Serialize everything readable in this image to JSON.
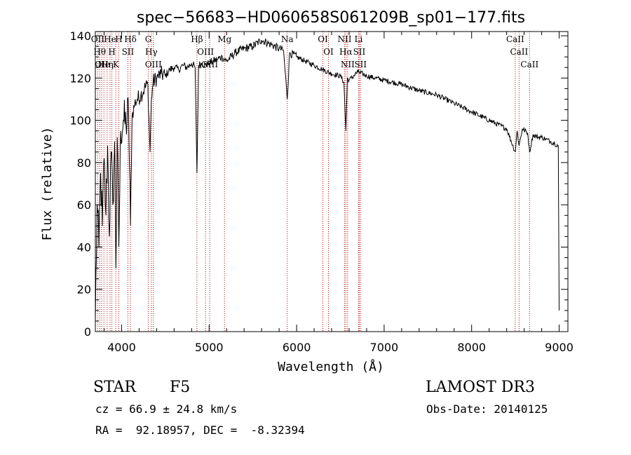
{
  "chart_data": {
    "type": "line",
    "title": "spec−56683−HD060658S061209B_sp01−177.fits",
    "xlabel": "Wavelength (Å)",
    "ylabel": "Flux (relative)",
    "xlim": [
      3700,
      9100
    ],
    "ylim": [
      0,
      142
    ],
    "xticks": [
      4000,
      5000,
      6000,
      7000,
      8000,
      9000
    ],
    "yticks": [
      0,
      20,
      40,
      60,
      80,
      100,
      120,
      140
    ],
    "grid": false,
    "series": [
      {
        "name": "spectrum",
        "x": [
          3700,
          3720,
          3740,
          3760,
          3780,
          3800,
          3820,
          3840,
          3860,
          3880,
          3900,
          3920,
          3935,
          3950,
          3968,
          3990,
          4020,
          4050,
          4080,
          4101,
          4120,
          4150,
          4180,
          4220,
          4260,
          4300,
          4325,
          4340,
          4360,
          4400,
          4450,
          4500,
          4550,
          4600,
          4650,
          4700,
          4750,
          4800,
          4840,
          4861,
          4880,
          4920,
          4960,
          5000,
          5050,
          5100,
          5150,
          5200,
          5300,
          5400,
          5500,
          5600,
          5700,
          5800,
          5850,
          5893,
          5920,
          6000,
          6100,
          6200,
          6300,
          6400,
          6500,
          6540,
          6563,
          6580,
          6600,
          6650,
          6700,
          6800,
          6900,
          7000,
          7200,
          7400,
          7600,
          7800,
          8000,
          8200,
          8400,
          8498,
          8520,
          8542,
          8580,
          8640,
          8662,
          8700,
          8760,
          8800,
          8850,
          8900,
          8950,
          8990,
          9000
        ],
        "y": [
          5,
          60,
          40,
          75,
          50,
          82,
          55,
          88,
          45,
          85,
          60,
          90,
          30,
          92,
          40,
          95,
          100,
          98,
          105,
          50,
          102,
          108,
          110,
          112,
          115,
          117,
          85,
          110,
          118,
          120,
          122,
          121,
          124,
          125,
          124,
          126,
          125,
          127,
          125,
          75,
          126,
          127,
          126,
          127,
          128,
          129,
          130,
          128,
          132,
          134,
          135,
          138,
          136,
          134,
          133,
          110,
          132,
          130,
          128,
          126,
          124,
          122,
          121,
          118,
          95,
          120,
          119,
          121,
          123,
          121,
          120,
          119,
          117,
          114,
          112,
          108,
          104,
          100,
          96,
          85,
          95,
          88,
          96,
          94,
          85,
          93,
          92,
          92,
          91,
          90,
          89,
          88,
          10
        ]
      }
    ],
    "line_markers": [
      {
        "wl": 3727,
        "label": "OII"
      },
      {
        "wl": 3750,
        "label": "Hθ"
      },
      {
        "wl": 3772,
        "label": "OII"
      },
      {
        "wl": 3798,
        "label": "He"
      },
      {
        "wl": 3835,
        "label": "Hη"
      },
      {
        "wl": 3868,
        "label": "He"
      },
      {
        "wl": 3889,
        "label": "H"
      },
      {
        "wl": 3934,
        "label": "K"
      },
      {
        "wl": 3968,
        "label": "H"
      },
      {
        "wl": 4072,
        "label": "SII"
      },
      {
        "wl": 4101,
        "label": "Hδ"
      },
      {
        "wl": 4305,
        "label": "G"
      },
      {
        "wl": 4340,
        "label": "Hγ"
      },
      {
        "wl": 4363,
        "label": "OIII"
      },
      {
        "wl": 4861,
        "label": "Hβ"
      },
      {
        "wl": 4959,
        "label": "OIII"
      },
      {
        "wl": 5007,
        "label": "OIII"
      },
      {
        "wl": 5176,
        "label": "Mg"
      },
      {
        "wl": 5893,
        "label": "Na"
      },
      {
        "wl": 6300,
        "label": "OI"
      },
      {
        "wl": 6364,
        "label": "OI"
      },
      {
        "wl": 6548,
        "label": "NII"
      },
      {
        "wl": 6563,
        "label": "Hα"
      },
      {
        "wl": 6583,
        "label": "NII"
      },
      {
        "wl": 6708,
        "label": "Li"
      },
      {
        "wl": 6716,
        "label": "SII"
      },
      {
        "wl": 6731,
        "label": "SII"
      },
      {
        "wl": 8498,
        "label": "CaII"
      },
      {
        "wl": 8542,
        "label": "CaII"
      },
      {
        "wl": 8662,
        "label": "CaII"
      }
    ]
  },
  "info": {
    "class": "STAR",
    "subclass": "F5",
    "survey": "LAMOST DR3",
    "cz": "cz = 66.9 ± 24.8 km/s",
    "obs_date": "Obs-Date: 20140125",
    "radec": "RA =  92.18957, DEC =  -8.32394"
  },
  "colors": {
    "line": "#000000",
    "marker": "#b00000",
    "axis": "#000000"
  }
}
